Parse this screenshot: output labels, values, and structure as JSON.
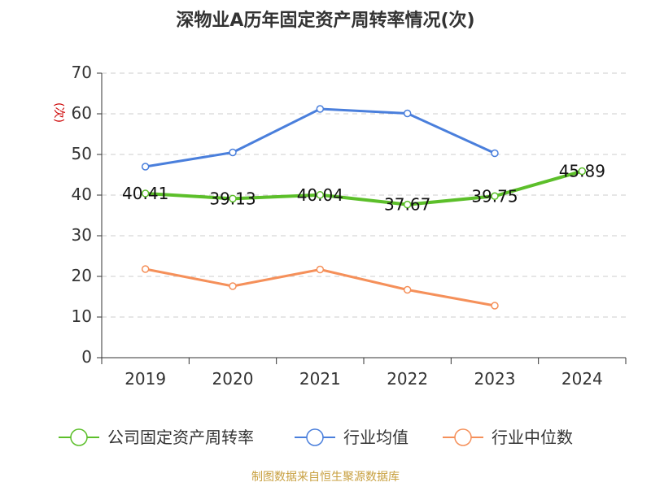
{
  "chart_data": {
    "type": "line",
    "title": "深物业A历年固定资产周转率情况(次)",
    "ylabel": "(次)",
    "xlabel": "",
    "categories": [
      "2019",
      "2020",
      "2021",
      "2022",
      "2023",
      "2024"
    ],
    "ylim": [
      0,
      70
    ],
    "yticks": [
      0,
      10,
      20,
      30,
      40,
      50,
      60,
      70
    ],
    "grid": true,
    "legend_position": "bottom",
    "series": [
      {
        "name": "公司固定资产周转率",
        "color": "#5cbf2a",
        "values": [
          40.41,
          39.13,
          40.04,
          37.67,
          39.75,
          45.89
        ],
        "labels": [
          "40.41",
          "39.13",
          "40.04",
          "37.67",
          "39.75",
          "45.89"
        ]
      },
      {
        "name": "行业均值",
        "color": "#4a7fdc",
        "values": [
          47.0,
          50.5,
          61.2,
          60.1,
          50.3,
          null
        ]
      },
      {
        "name": "行业中位数",
        "color": "#f5905a",
        "values": [
          21.8,
          17.6,
          21.7,
          16.7,
          12.8,
          null
        ]
      }
    ],
    "source": "制图数据来自恒生聚源数据库"
  },
  "colors": {
    "title": "#333333",
    "axis": "#333333",
    "grid": "#cccccc",
    "ylabel": "#cc0000",
    "source": "#c8a040"
  }
}
